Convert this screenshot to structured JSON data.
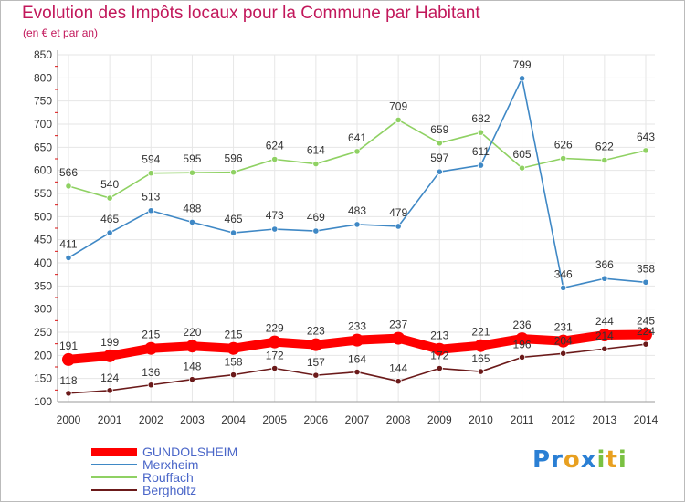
{
  "title": "Evolution des Impôts locaux pour la Commune par Habitant",
  "subtitle": "(en € et par an)",
  "logo": {
    "text": "Proxiti",
    "letters": [
      "P",
      "r",
      "o",
      "x",
      "i",
      "t",
      "i"
    ],
    "colors": [
      "#2a7fd4",
      "#2a7fd4",
      "#e8a020",
      "#2a7fd4",
      "#7ac142",
      "#e8a020",
      "#7ac142"
    ]
  },
  "chart_data": {
    "type": "line",
    "x": [
      2000,
      2001,
      2002,
      2003,
      2004,
      2005,
      2006,
      2007,
      2008,
      2009,
      2010,
      2011,
      2012,
      2013,
      2014
    ],
    "ylim": [
      100,
      850
    ],
    "yticks": [
      100,
      150,
      200,
      250,
      300,
      350,
      400,
      450,
      500,
      550,
      600,
      650,
      700,
      750,
      800,
      850
    ],
    "grid": true,
    "legend_position": "bottom-left",
    "series": [
      {
        "name": "GUNDOLSHEIM",
        "color": "#ff0000",
        "values": [
          191,
          199,
          215,
          220,
          215,
          229,
          223,
          233,
          237,
          213,
          221,
          236,
          231,
          244,
          245
        ]
      },
      {
        "name": "Merxheim",
        "color": "#3f88c5",
        "values": [
          411,
          465,
          513,
          488,
          465,
          473,
          469,
          483,
          479,
          597,
          611,
          799,
          346,
          366,
          358
        ]
      },
      {
        "name": "Rouffach",
        "color": "#8fd163",
        "values": [
          566,
          540,
          594,
          595,
          596,
          624,
          614,
          641,
          709,
          659,
          682,
          605,
          626,
          622,
          643
        ]
      },
      {
        "name": "Bergholtz",
        "color": "#6b1a1a",
        "values": [
          118,
          124,
          136,
          148,
          158,
          172,
          157,
          164,
          144,
          172,
          165,
          196,
          204,
          214,
          224
        ]
      }
    ]
  }
}
